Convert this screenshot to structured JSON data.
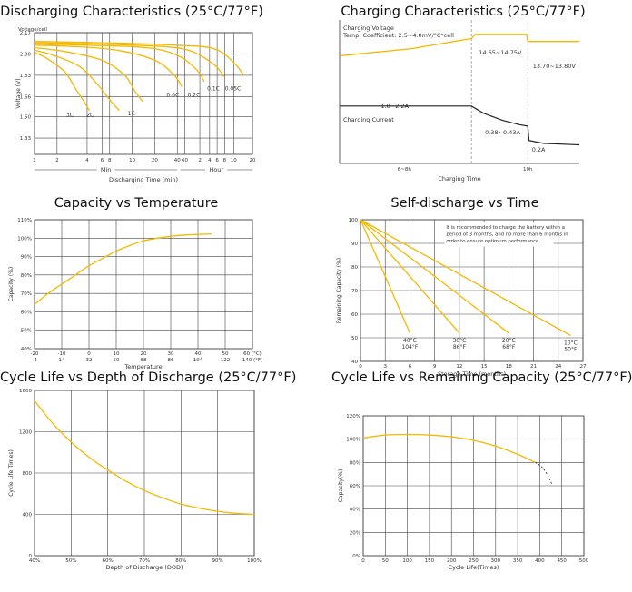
{
  "colors": {
    "curve": "#f5b800",
    "dark": "#333333",
    "dashed": "#888888"
  },
  "charts": [
    {
      "id": "discharge",
      "title": "Discharging Characteristics (25°C/77°F)",
      "chart_data": {
        "type": "line",
        "ylabel_top": "Voltage/cell",
        "ylabel": "Voltage (V)",
        "xlabel": "Discharging Time (min)",
        "yticks": [
          "2.17",
          "2.00",
          "1.83",
          "1.66",
          "1.50",
          "1.33"
        ],
        "xticks": [
          "1",
          "2",
          "4",
          "6",
          "8",
          "10",
          "20",
          "40",
          "60",
          "2",
          "4",
          "6",
          "8",
          "10",
          "20"
        ],
        "xgroups": [
          "Min",
          "Hour"
        ],
        "series": [
          {
            "name": "3C",
            "label_pos": [
              5.7,
              1.5
            ],
            "x": [
              1,
              2.5,
              5,
              6.5,
              7.6,
              8.3
            ],
            "y": [
              2.01,
              1.97,
              1.86,
              1.72,
              1.62,
              1.55
            ]
          },
          {
            "name": "2C",
            "label_pos": [
              8.4,
              1.5
            ],
            "x": [
              1,
              3.5,
              7,
              9.5,
              11.2,
              12.3
            ],
            "y": [
              2.03,
              1.99,
              1.9,
              1.75,
              1.62,
              1.55
            ]
          },
          {
            "name": "1C",
            "label_pos": [
              13.9,
              1.51
            ],
            "x": [
              1,
              5,
              10,
              13,
              14.4,
              15.4
            ],
            "y": [
              2.05,
              2.02,
              1.95,
              1.83,
              1.7,
              1.62
            ]
          },
          {
            "name": "0.6C",
            "label_pos": [
              19.4,
              1.66
            ],
            "x": [
              1,
              6,
              12,
              17,
              19.6,
              20.6
            ],
            "y": [
              2.07,
              2.06,
              2.03,
              1.95,
              1.83,
              1.74
            ]
          },
          {
            "name": "0.2C",
            "label_pos": [
              22.2,
              1.66
            ],
            "x": [
              1,
              8,
              16,
              20,
              22.5,
              23.6
            ],
            "y": [
              2.08,
              2.07,
              2.05,
              1.99,
              1.88,
              1.78
            ]
          },
          {
            "name": "0.1C",
            "label_pos": [
              24.8,
              1.71
            ],
            "x": [
              1,
              9,
              18,
              22,
              25,
              26.2
            ],
            "y": [
              2.09,
              2.08,
              2.06,
              2.02,
              1.91,
              1.82
            ]
          },
          {
            "name": "0.05C",
            "label_pos": [
              27.4,
              1.71
            ],
            "x": [
              1,
              10,
              20,
              25,
              27.7,
              28.8
            ],
            "y": [
              2.1,
              2.09,
              2.07,
              2.04,
              1.92,
              1.83
            ]
          }
        ]
      }
    },
    {
      "id": "charging",
      "title": "Charging Characteristics (25°C/77°F)",
      "chart_data": {
        "type": "line",
        "xlabel": "Charging Time",
        "xticks": [
          "6~8h",
          "10h"
        ],
        "legend_voltage": "Charging Voltage",
        "legend_coef": "Temp. Coefficient: 2.5~4.0mV/°C*cell",
        "legend_current": "Charging Current",
        "annotations": [
          "14.65~14.75V",
          "13.70~13.80V",
          "1.8~2.2A",
          "0.38~0.43A",
          "0.2A"
        ],
        "voltage": {
          "x": [
            0,
            0.3,
            0.55,
            0.565,
            0.78,
            0.785,
            1
          ],
          "y": [
            0.75,
            0.8,
            0.87,
            0.9,
            0.9,
            0.85,
            0.85
          ]
        },
        "current": {
          "x": [
            0,
            0.55,
            0.6,
            0.68,
            0.75,
            0.785,
            0.79,
            0.85,
            1
          ],
          "y": [
            0.4,
            0.4,
            0.35,
            0.3,
            0.27,
            0.26,
            0.16,
            0.14,
            0.13
          ]
        }
      }
    },
    {
      "id": "captemp",
      "title": "Capacity vs Temperature",
      "chart_data": {
        "type": "line",
        "ylabel": "Capacity (%)",
        "xlabel": "Temperature",
        "yticks": [
          "110%",
          "100%",
          "90%",
          "80%",
          "70%",
          "60%",
          "50%",
          "40%"
        ],
        "xticks_c": [
          "-20",
          "-10",
          "0",
          "10",
          "20",
          "30",
          "40",
          "50",
          "60 (°C)"
        ],
        "xticks_f": [
          "-4",
          "14",
          "32",
          "50",
          "68",
          "86",
          "104",
          "122",
          "140 (°F)"
        ],
        "ylim": [
          40,
          110
        ],
        "x": [
          -20,
          -15,
          -10,
          -5,
          0,
          5,
          10,
          15,
          20,
          25,
          30,
          35,
          40,
          45
        ],
        "y": [
          64,
          70,
          75,
          80,
          85,
          89,
          93,
          96,
          98.5,
          100,
          101,
          101.7,
          102,
          102.3
        ]
      }
    },
    {
      "id": "selfdis",
      "title": "Self-discharge vs Time",
      "chart_data": {
        "type": "line",
        "ylabel": "Remaining Capacity (%)",
        "xlabel": "Storage Time (months)",
        "yticks": [
          "100",
          "90",
          "80",
          "70",
          "60",
          "50",
          "40"
        ],
        "xticks": [
          "0",
          "3",
          "6",
          "9",
          "12",
          "15",
          "18",
          "21",
          "24",
          "27"
        ],
        "ylim": [
          40,
          100
        ],
        "xlim": [
          0,
          27
        ],
        "note": "It is recommended to charge the battery within a period of 3 months, and no more than 6 months in order to ensure optimum performance.",
        "series": [
          {
            "label_c": "40°C",
            "label_f": "104°F",
            "x": [
              0,
              6
            ],
            "y": [
              100,
              52
            ]
          },
          {
            "label_c": "30°C",
            "label_f": "86°F",
            "x": [
              0,
              12
            ],
            "y": [
              100,
              52
            ]
          },
          {
            "label_c": "20°C",
            "label_f": "68°F",
            "x": [
              0,
              18
            ],
            "y": [
              100,
              52
            ]
          },
          {
            "label_c": "10°C",
            "label_f": "50°F",
            "x": [
              0,
              25.5
            ],
            "y": [
              100,
              51
            ]
          }
        ]
      }
    },
    {
      "id": "cycledod",
      "title": "Cycle Life vs Depth of Discharge (25°C/77°F)",
      "chart_data": {
        "type": "line",
        "ylabel": "Cycle Life(Times)",
        "xlabel": "Depth of Discharge (DOD)",
        "yticks": [
          "1600",
          "1200",
          "800",
          "400",
          "0"
        ],
        "xticks": [
          "40%",
          "50%",
          "60%",
          "70%",
          "80%",
          "90%",
          "100%"
        ],
        "ylim": [
          0,
          1600
        ],
        "xlim": [
          40,
          100
        ],
        "x": [
          40,
          45,
          50,
          55,
          60,
          65,
          70,
          75,
          80,
          85,
          90,
          95,
          100
        ],
        "y": [
          1500,
          1280,
          1100,
          950,
          830,
          720,
          630,
          560,
          500,
          460,
          430,
          410,
          400
        ]
      }
    },
    {
      "id": "cyclecap",
      "title": "Cycle Life vs Remaining Capacity (25°C/77°F)",
      "chart_data": {
        "type": "line",
        "ylabel": "Capacity(%)",
        "xlabel": "Cycle Life(Times)",
        "yticks": [
          "120%",
          "100%",
          "80%",
          "60%",
          "40%",
          "20%",
          "0%"
        ],
        "xticks": [
          "0",
          "50",
          "100",
          "150",
          "200",
          "250",
          "300",
          "350",
          "400",
          "450",
          "500"
        ],
        "ylim": [
          0,
          120
        ],
        "xlim": [
          0,
          500
        ],
        "x": [
          0,
          50,
          100,
          150,
          200,
          250,
          300,
          350,
          390
        ],
        "y": [
          101,
          103.5,
          104,
          103.5,
          102,
          99,
          94,
          87,
          80
        ],
        "dash_x": [
          390,
          405,
          418,
          428
        ],
        "dash_y": [
          80,
          76,
          69,
          61
        ]
      }
    }
  ]
}
